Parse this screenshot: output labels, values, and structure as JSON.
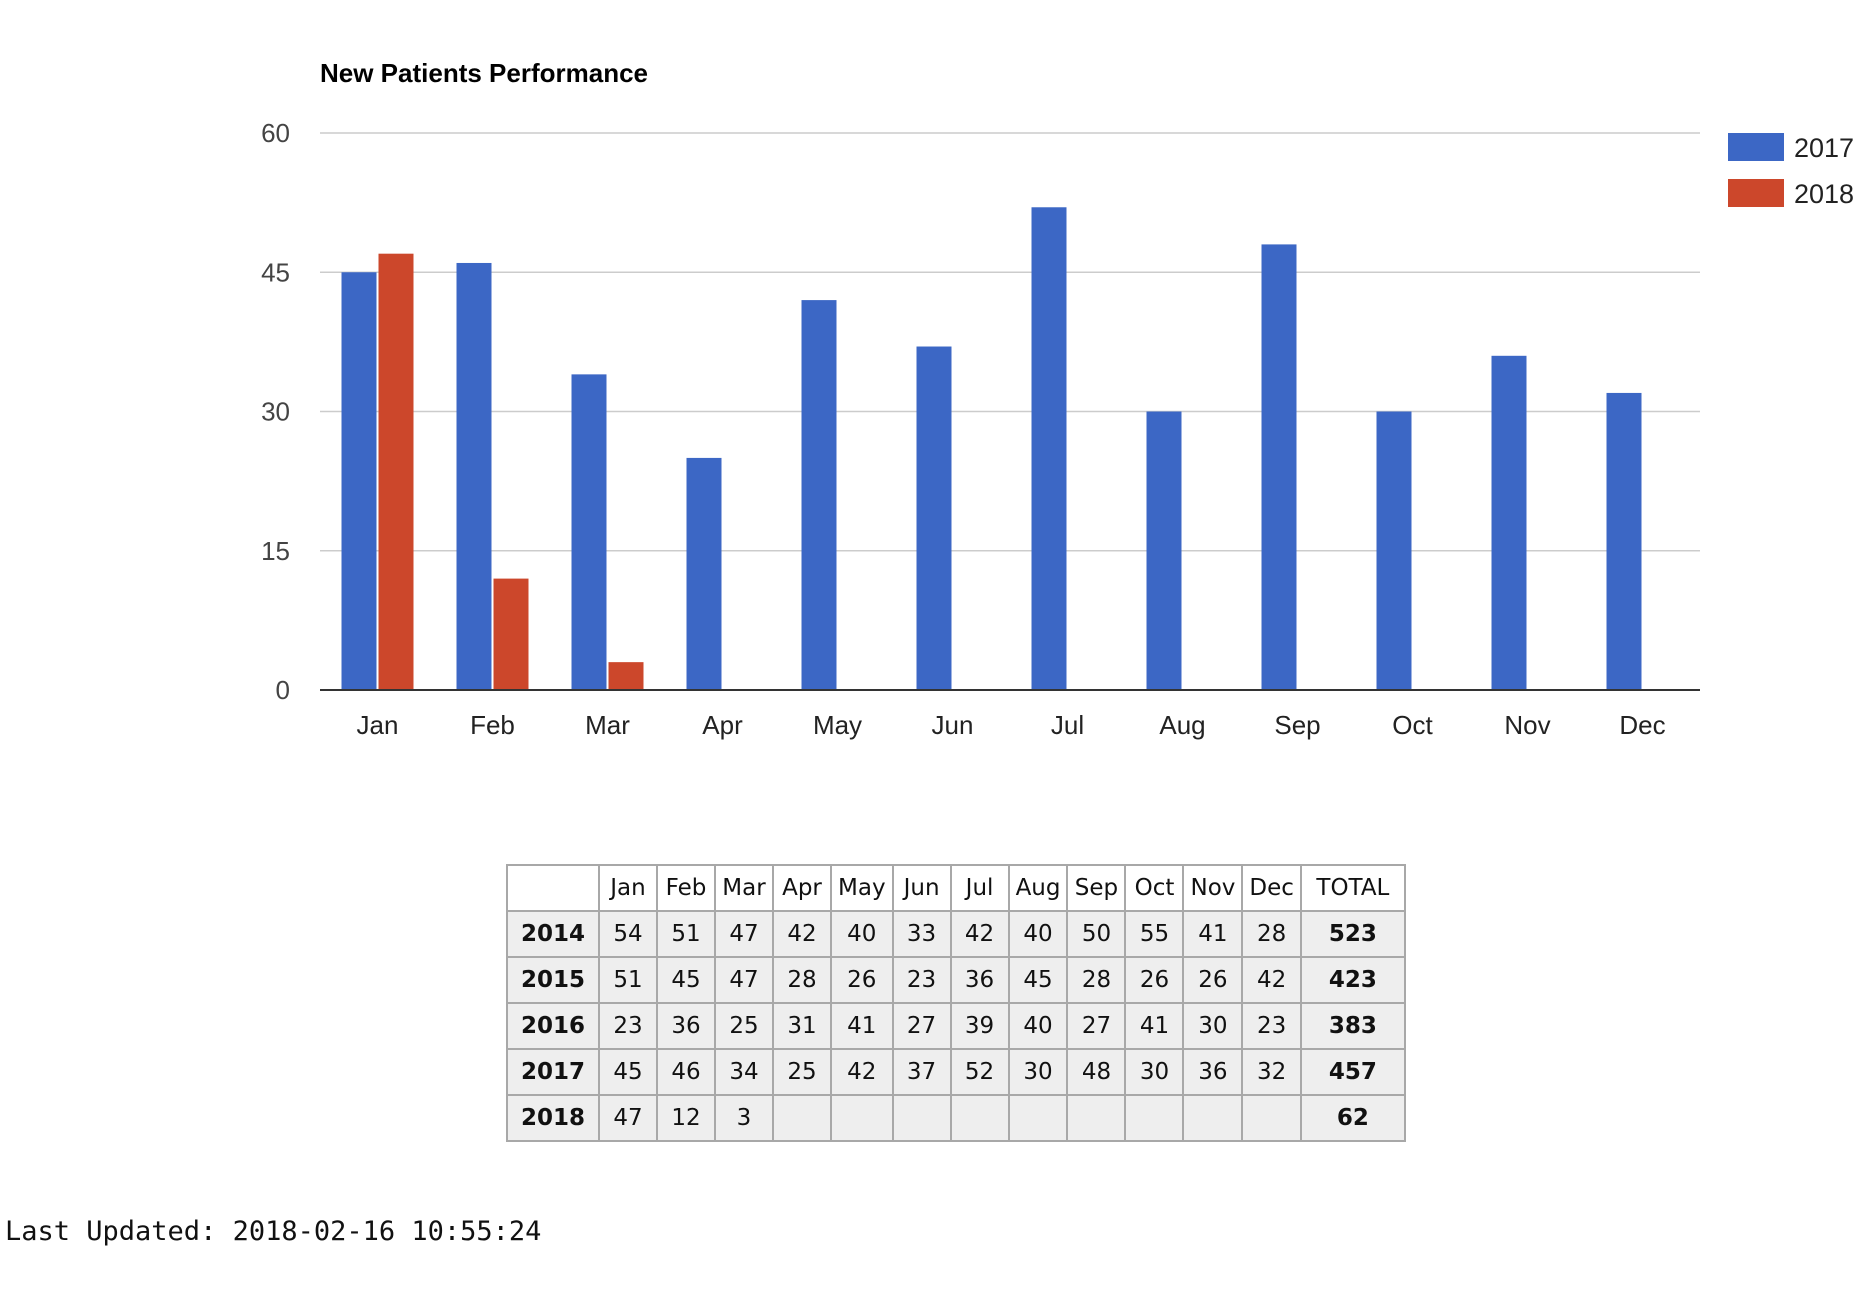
{
  "chart_data": {
    "type": "bar",
    "title": "New Patients Performance",
    "xlabel": "",
    "ylabel": "",
    "categories": [
      "Jan",
      "Feb",
      "Mar",
      "Apr",
      "May",
      "Jun",
      "Jul",
      "Aug",
      "Sep",
      "Oct",
      "Nov",
      "Dec"
    ],
    "series": [
      {
        "name": "2017",
        "color": "#3c67c5",
        "values": [
          45,
          46,
          34,
          25,
          42,
          37,
          52,
          30,
          48,
          30,
          36,
          32
        ]
      },
      {
        "name": "2018",
        "color": "#cc472b",
        "values": [
          47,
          12,
          3,
          null,
          null,
          null,
          null,
          null,
          null,
          null,
          null,
          null
        ]
      }
    ],
    "ylim": [
      0,
      60
    ],
    "yticks": [
      0,
      15,
      30,
      45,
      60
    ],
    "grid": true,
    "legend": "right"
  },
  "table": {
    "columns": [
      "",
      "Jan",
      "Feb",
      "Mar",
      "Apr",
      "May",
      "Jun",
      "Jul",
      "Aug",
      "Sep",
      "Oct",
      "Nov",
      "Dec",
      "TOTAL"
    ],
    "rows": [
      {
        "year": "2014",
        "values": [
          "54",
          "51",
          "47",
          "42",
          "40",
          "33",
          "42",
          "40",
          "50",
          "55",
          "41",
          "28"
        ],
        "total": "523"
      },
      {
        "year": "2015",
        "values": [
          "51",
          "45",
          "47",
          "28",
          "26",
          "23",
          "36",
          "45",
          "28",
          "26",
          "26",
          "42"
        ],
        "total": "423"
      },
      {
        "year": "2016",
        "values": [
          "23",
          "36",
          "25",
          "31",
          "41",
          "27",
          "39",
          "40",
          "27",
          "41",
          "30",
          "23"
        ],
        "total": "383"
      },
      {
        "year": "2017",
        "values": [
          "45",
          "46",
          "34",
          "25",
          "42",
          "37",
          "52",
          "30",
          "48",
          "30",
          "36",
          "32"
        ],
        "total": "457"
      },
      {
        "year": "2018",
        "values": [
          "47",
          "12",
          "3",
          "",
          "",
          "",
          "",
          "",
          "",
          "",
          "",
          ""
        ],
        "total": "62"
      }
    ]
  },
  "footer": {
    "last_updated": "Last Updated: 2018-02-16 10:55:24"
  }
}
